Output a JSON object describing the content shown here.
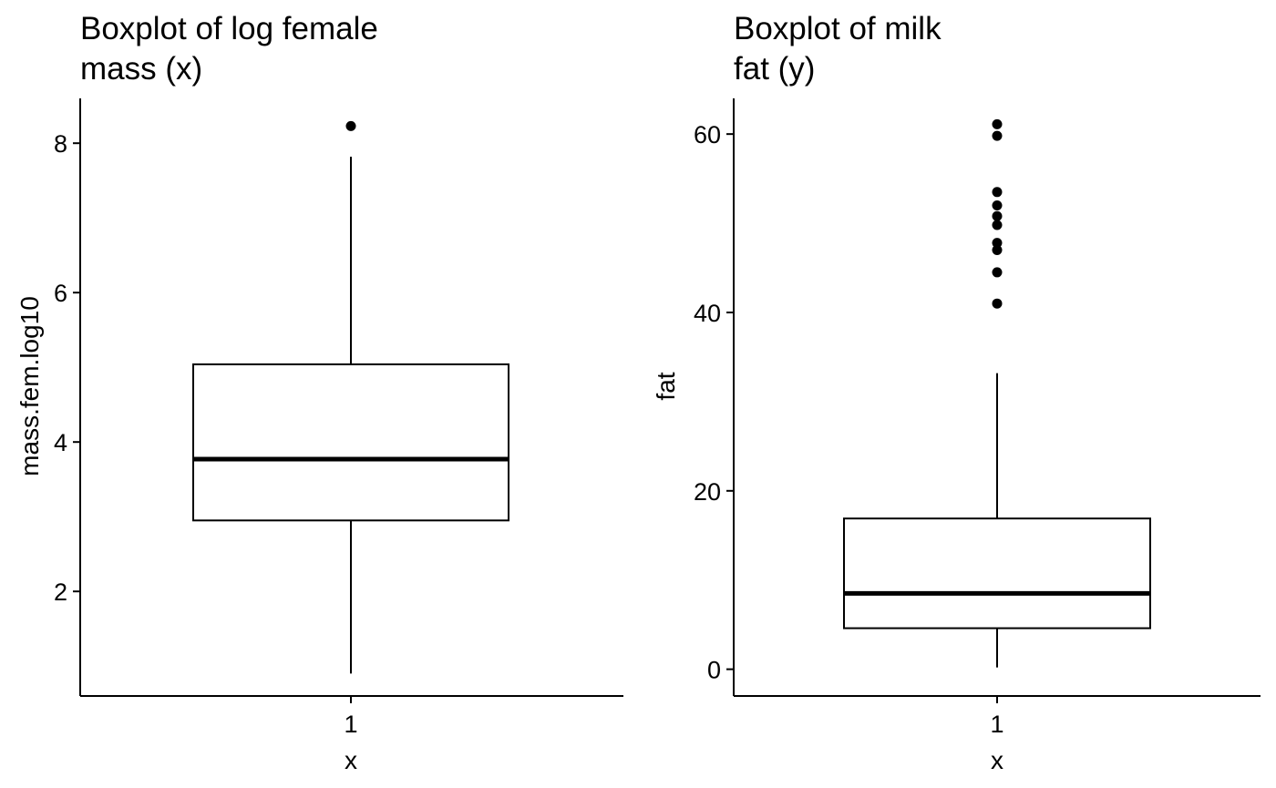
{
  "chart_data": [
    {
      "type": "boxplot",
      "title_lines": [
        "Boxplot of log female",
        "mass (x)"
      ],
      "xlabel": "x",
      "ylabel": "mass.fem.log10",
      "categories": [
        "1"
      ],
      "yticks": [
        2,
        4,
        6,
        8
      ],
      "ylim": [
        0.6,
        8.6
      ],
      "box": {
        "whisker_low": 0.9,
        "q1": 2.95,
        "median": 3.77,
        "q3": 5.04,
        "whisker_high": 7.82,
        "outliers": [
          8.23
        ]
      },
      "grid": false
    },
    {
      "type": "boxplot",
      "title_lines": [
        "Boxplot of milk",
        "fat (y)"
      ],
      "xlabel": "x",
      "ylabel": "fat",
      "categories": [
        "1"
      ],
      "yticks": [
        0,
        20,
        40,
        60
      ],
      "ylim": [
        -3,
        64
      ],
      "box": {
        "whisker_low": 0.2,
        "q1": 4.6,
        "median": 8.5,
        "q3": 16.9,
        "whisker_high": 33.2,
        "outliers": [
          41.0,
          44.5,
          47.0,
          47.8,
          49.8,
          50.8,
          52.0,
          53.5,
          59.8,
          61.1
        ]
      },
      "grid": false
    }
  ]
}
